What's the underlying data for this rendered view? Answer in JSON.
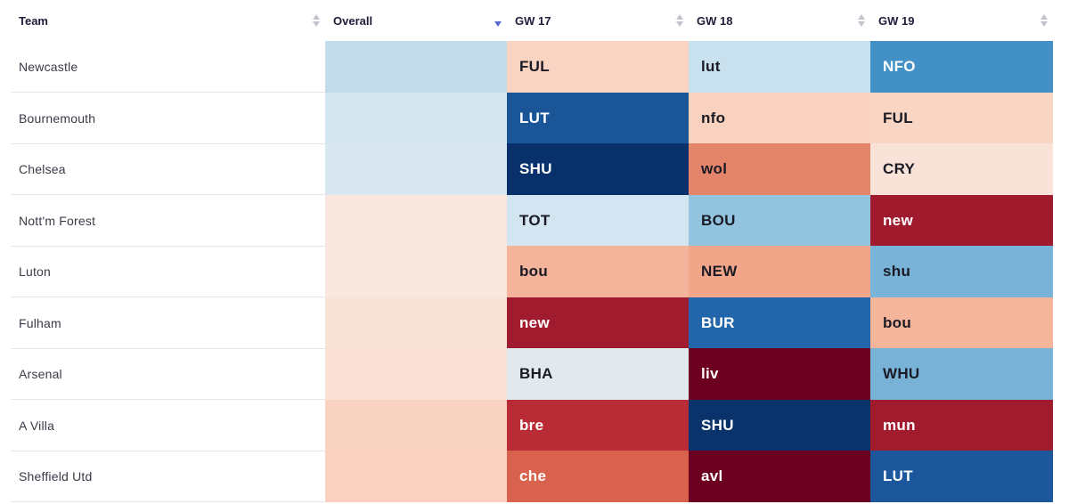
{
  "columns": {
    "team": "Team",
    "overall": "Overall",
    "gw17": "GW 17",
    "gw18": "GW 18",
    "gw19": "GW 19"
  },
  "sort": {
    "column": "Overall",
    "direction": "descending"
  },
  "rows": [
    {
      "team": "Newcastle",
      "overall_color": "#c4dcea",
      "gw17": {
        "opp": "FUL",
        "color": "#f9d4c2",
        "text": "dark-on-light"
      },
      "gw18": {
        "opp": "lut",
        "color": "#c9e1ee"
      },
      "gw19": {
        "opp": "NFO",
        "color": "#4390c6"
      }
    },
    {
      "team": "Bournemouth",
      "overall_color": "#d4e6f0",
      "gw17": {
        "opp": "LUT",
        "color": "#195597"
      },
      "gw18": {
        "opp": "nfo",
        "color": "#f8d2be"
      },
      "gw19": {
        "opp": "FUL",
        "color": "#f9d6c4"
      }
    },
    {
      "team": "Chelsea",
      "overall_color": "#d8e7f0",
      "gw17": {
        "opp": "SHU",
        "color": "#08306a"
      },
      "gw18": {
        "opp": "wol",
        "color": "#e3846b"
      },
      "gw19": {
        "opp": "CRY",
        "color": "#f9e3d9"
      }
    },
    {
      "team": "Nott'm Forest",
      "overall_color": "#f9e6de",
      "gw17": {
        "opp": "TOT",
        "color": "#d3e5f0"
      },
      "gw18": {
        "opp": "BOU",
        "color": "#92c4df"
      },
      "gw19": {
        "opp": "new",
        "color": "#a01a2e"
      }
    },
    {
      "team": "Luton",
      "overall_color": "#f9e6de",
      "gw17": {
        "opp": "bou",
        "color": "#f3b49b"
      },
      "gw18": {
        "opp": "NEW",
        "color": "#f1a689"
      },
      "gw19": {
        "opp": "shu",
        "color": "#79b3d7"
      }
    },
    {
      "team": "Fulham",
      "overall_color": "#f9e3d9",
      "gw17": {
        "opp": "new",
        "color": "#a11b2e"
      },
      "gw18": {
        "opp": "BUR",
        "color": "#2265ab"
      },
      "gw19": {
        "opp": "bou",
        "color": "#f4b59b"
      }
    },
    {
      "team": "Arsenal",
      "overall_color": "#fae2d7",
      "gw17": {
        "opp": "BHA",
        "color": "#e2e9ee"
      },
      "gw18": {
        "opp": "liv",
        "color": "#6b0020"
      },
      "gw19": {
        "opp": "WHU",
        "color": "#78b2d6"
      }
    },
    {
      "team": "A Villa",
      "overall_color": "#f9d3c2",
      "gw17": {
        "opp": "bre",
        "color": "#b92b35"
      },
      "gw18": {
        "opp": "SHU",
        "color": "#0a336b"
      },
      "gw19": {
        "opp": "mun",
        "color": "#a01b2e"
      }
    },
    {
      "team": "Sheffield Utd",
      "overall_color": "#f9d1be",
      "gw17": {
        "opp": "che",
        "color": "#d9624e"
      },
      "gw18": {
        "opp": "avl",
        "color": "#6b0020"
      },
      "gw19": {
        "opp": "LUT",
        "color": "#1b579a"
      }
    }
  ]
}
